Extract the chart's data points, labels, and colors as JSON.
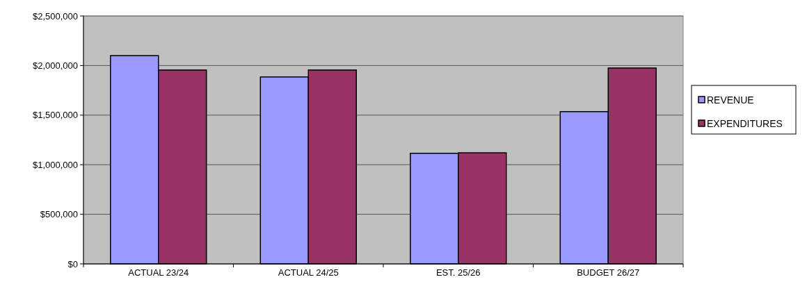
{
  "chart_data": {
    "type": "bar",
    "categories": [
      "ACTUAL 23/24",
      "ACTUAL 24/25",
      "EST. 25/26",
      "BUDGET 26/27"
    ],
    "series": [
      {
        "name": "REVENUE",
        "color": "#9999ff",
        "values": [
          2100000,
          1885000,
          1115000,
          1535000
        ]
      },
      {
        "name": "EXPENDITURES",
        "color": "#993366",
        "values": [
          1955000,
          1955000,
          1120000,
          1975000
        ]
      }
    ],
    "ylim": [
      0,
      2500000
    ],
    "yticks": [
      {
        "value": 0,
        "label": "$0"
      },
      {
        "value": 500000,
        "label": "$500,000"
      },
      {
        "value": 1000000,
        "label": "$1,000,000"
      },
      {
        "value": 1500000,
        "label": "$1,500,000"
      },
      {
        "value": 2000000,
        "label": "$2,000,000"
      },
      {
        "value": 2500000,
        "label": "$2,500,000"
      }
    ],
    "grid": "y",
    "legend": "right"
  }
}
